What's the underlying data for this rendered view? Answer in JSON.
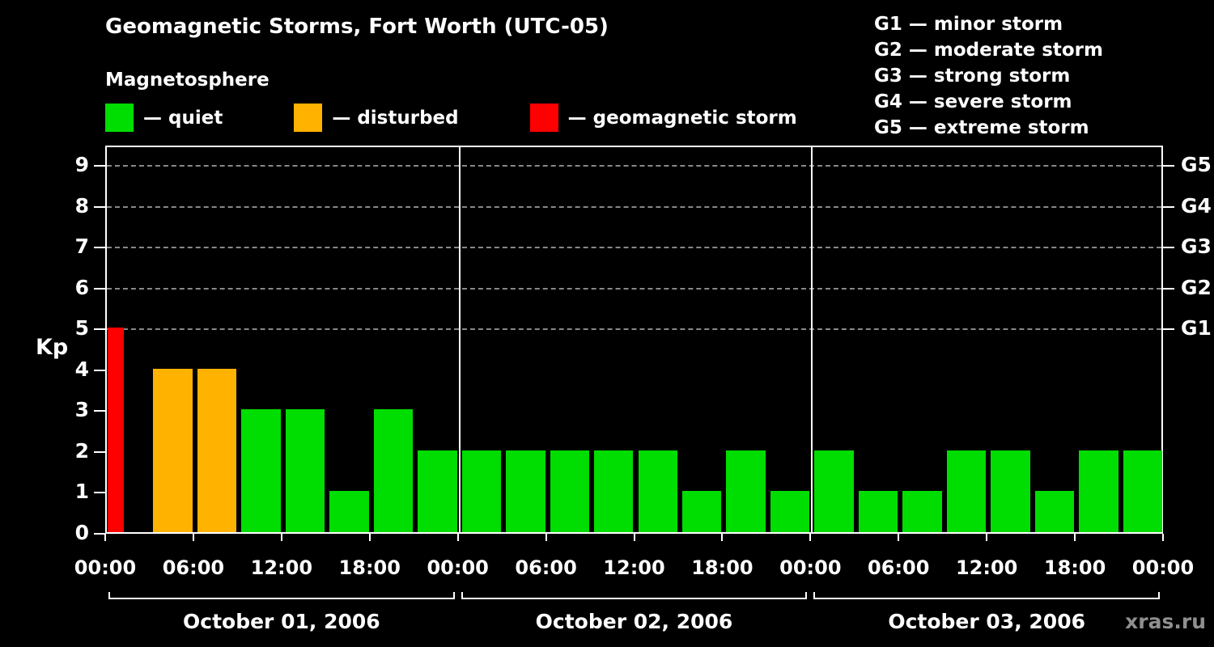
{
  "header": {
    "title": "Geomagnetic Storms, Fort Worth (UTC-05)",
    "subtitle": "Magnetosphere"
  },
  "legend": {
    "items": [
      {
        "label": "— quiet",
        "color_key": "quiet"
      },
      {
        "label": "— disturbed",
        "color_key": "disturbed"
      },
      {
        "label": "— geomagnetic storm",
        "color_key": "storm"
      }
    ]
  },
  "storm_scale": [
    "G1 — minor storm",
    "G2 — moderate storm",
    "G3 — strong storm",
    "G4 — severe storm",
    "G5 — extreme storm"
  ],
  "chart_data": {
    "type": "bar",
    "title": "Geomagnetic Storms, Fort Worth (UTC-05)",
    "subtitle": "Magnetosphere",
    "ylabel": "Kp",
    "ylim": [
      0,
      9.5
    ],
    "y_ticks": [
      "0",
      "1",
      "2",
      "3",
      "4",
      "5",
      "6",
      "7",
      "8",
      "9"
    ],
    "x_tick_labels": [
      "00:00",
      "06:00",
      "12:00",
      "18:00",
      "00:00",
      "06:00",
      "12:00",
      "18:00",
      "00:00",
      "06:00",
      "12:00",
      "18:00",
      "00:00"
    ],
    "right_axis": [
      {
        "kp": 5,
        "label": "G1"
      },
      {
        "kp": 6,
        "label": "G2"
      },
      {
        "kp": 7,
        "label": "G3"
      },
      {
        "kp": 8,
        "label": "G4"
      },
      {
        "kp": 9,
        "label": "G5"
      }
    ],
    "bar_interval_hours": 3,
    "days": [
      {
        "label": "October 01, 2006",
        "values": [
          5,
          4,
          4,
          3,
          3,
          1,
          3,
          2
        ]
      },
      {
        "label": "October 02, 2006",
        "values": [
          2,
          2,
          2,
          2,
          2,
          1,
          2,
          1
        ]
      },
      {
        "label": "October 03, 2006",
        "values": [
          2,
          1,
          1,
          2,
          2,
          1,
          2,
          2
        ]
      }
    ],
    "colors": {
      "quiet": "#00dd00",
      "disturbed": "#ffb200",
      "storm": "#ff0000"
    },
    "color_rule": {
      "disturbed_kp": 4,
      "storm_min_kp": 5
    },
    "grid": "dashed horizontal lines at G1–G5 levels",
    "legend_position": "top-left"
  },
  "watermark": "xras.ru"
}
